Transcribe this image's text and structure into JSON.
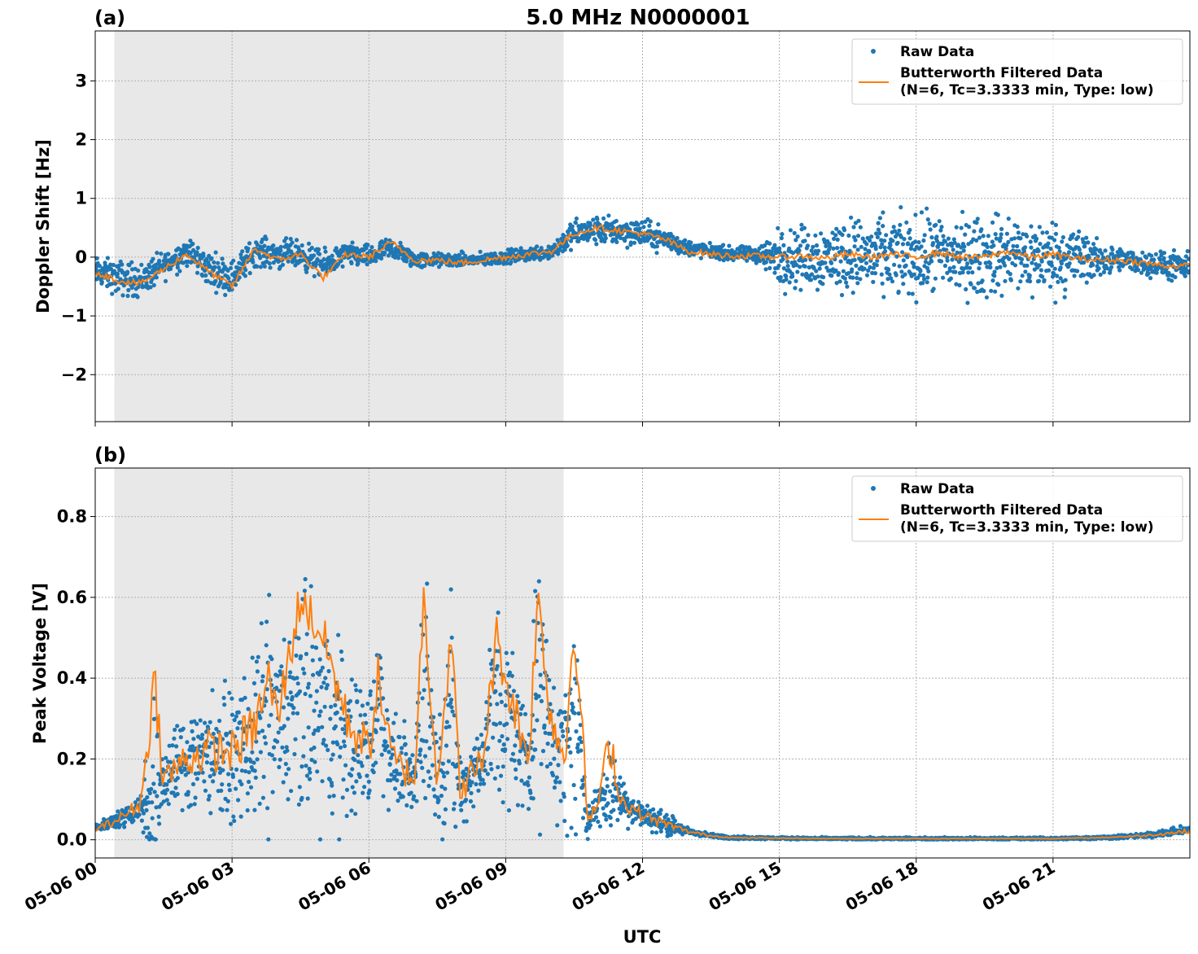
{
  "chart_data": {
    "type": "scatter",
    "title": "5.0 MHz N0000001",
    "xlabel": "UTC",
    "x_tick_labels": [
      "05-06 00",
      "05-06 03",
      "05-06 06",
      "05-06 09",
      "05-06 12",
      "05-06 15",
      "05-06 18",
      "05-06 21"
    ],
    "x_tick_hours": [
      0,
      3,
      6,
      9,
      12,
      15,
      18,
      21
    ],
    "xlim_hours": [
      0,
      24
    ],
    "shaded_region_hours": [
      0.42,
      10.27
    ],
    "grid": true,
    "legend_placement": "top-right",
    "colors": {
      "raw": "#1f77b4",
      "filtered": "#ff7f0e",
      "shade": "#e8e8e8"
    },
    "legend": {
      "raw": "Raw Data",
      "filtered_line1": "Butterworth Filtered Data",
      "filtered_line2": "(N=6, Tc=3.3333 min, Type: low)"
    },
    "panels": [
      {
        "label": "(a)",
        "ylabel": "Doppler Shift [Hz]",
        "ylim": [
          -2.8,
          3.85
        ],
        "y_ticks": [
          -2,
          -1,
          0,
          1,
          2,
          3
        ],
        "y_tick_labels": [
          "−2",
          "−1",
          "0",
          "1",
          "2",
          "3"
        ],
        "series": [
          {
            "name": "Raw Data",
            "kind": "scatter",
            "x_hours": [
              0,
              0.5,
              1,
              1.5,
              2,
              2.5,
              3,
              3.5,
              4,
              4.5,
              5,
              5.5,
              6,
              6.5,
              7,
              7.5,
              8,
              8.5,
              9,
              9.5,
              10,
              10.5,
              11,
              11.5,
              12,
              12.5,
              13,
              13.5,
              14,
              14.5,
              15,
              15.5,
              16,
              16.5,
              17,
              17.5,
              18,
              18.5,
              19,
              19.5,
              20,
              20.5,
              21,
              21.5,
              22,
              22.5,
              23,
              23.5,
              24
            ],
            "center": [
              -0.25,
              -0.35,
              -0.4,
              -0.15,
              0.1,
              -0.2,
              -0.35,
              0.1,
              0.05,
              0.05,
              -0.15,
              0.05,
              0.0,
              0.15,
              -0.05,
              -0.05,
              -0.05,
              -0.05,
              0.0,
              0.05,
              0.1,
              0.4,
              0.45,
              0.45,
              0.4,
              0.3,
              0.15,
              0.1,
              0.05,
              0.05,
              0.0,
              0.0,
              0.0,
              0.05,
              0.0,
              0.0,
              0.0,
              0.05,
              0.0,
              0.0,
              0.05,
              0.0,
              0.0,
              0.0,
              -0.05,
              -0.05,
              -0.1,
              -0.15,
              -0.2
            ],
            "spread": [
              0.25,
              0.3,
              0.3,
              0.25,
              0.25,
              0.3,
              0.3,
              0.25,
              0.25,
              0.25,
              0.25,
              0.2,
              0.2,
              0.2,
              0.15,
              0.12,
              0.12,
              0.12,
              0.12,
              0.12,
              0.15,
              0.25,
              0.25,
              0.25,
              0.25,
              0.2,
              0.15,
              0.12,
              0.12,
              0.15,
              0.5,
              0.55,
              0.6,
              0.65,
              0.65,
              0.7,
              0.7,
              0.7,
              0.7,
              0.7,
              0.7,
              0.7,
              0.65,
              0.6,
              0.3,
              0.2,
              0.2,
              0.25,
              0.25
            ]
          },
          {
            "name": "Butterworth Filtered Data",
            "kind": "line",
            "x_hours": [
              0,
              0.5,
              1,
              1.5,
              2,
              2.5,
              3,
              3.5,
              4,
              4.5,
              5,
              5.5,
              6,
              6.5,
              7,
              7.5,
              8,
              8.5,
              9,
              9.5,
              10,
              10.5,
              11,
              11.5,
              12,
              12.5,
              13,
              13.5,
              14,
              14.5,
              15,
              15.5,
              16,
              16.5,
              17,
              17.5,
              18,
              18.5,
              19,
              19.5,
              20,
              20.5,
              21,
              21.5,
              22,
              22.5,
              23,
              23.5,
              24
            ],
            "values": [
              -0.25,
              -0.4,
              -0.45,
              -0.2,
              0.05,
              -0.25,
              -0.5,
              0.15,
              -0.05,
              0.05,
              -0.35,
              0.05,
              0.0,
              0.25,
              -0.05,
              -0.05,
              -0.1,
              -0.05,
              0.0,
              0.05,
              0.1,
              0.4,
              0.5,
              0.45,
              0.4,
              0.3,
              0.1,
              0.05,
              0.02,
              0.02,
              0.0,
              0.02,
              -0.02,
              0.05,
              0.0,
              0.05,
              0.0,
              0.08,
              0.0,
              0.0,
              0.1,
              0.0,
              0.05,
              -0.02,
              -0.05,
              -0.05,
              -0.1,
              -0.15,
              -0.15
            ]
          }
        ]
      },
      {
        "label": "(b)",
        "ylabel": "Peak Voltage [V]",
        "ylim": [
          -0.045,
          0.92
        ],
        "y_ticks": [
          0.0,
          0.2,
          0.4,
          0.6,
          0.8
        ],
        "y_tick_labels": [
          "0.0",
          "0.2",
          "0.4",
          "0.6",
          "0.8"
        ],
        "series": [
          {
            "name": "Raw Data",
            "kind": "scatter",
            "x_hours": [
              0,
              0.5,
              1,
              1.3,
              1.5,
              2,
              2.5,
              3,
              3.5,
              3.8,
              4,
              4.5,
              5,
              5.5,
              6,
              6.2,
              6.5,
              7,
              7.2,
              7.5,
              7.8,
              8,
              8.5,
              8.8,
              9,
              9.5,
              9.7,
              10,
              10.3,
              10.5,
              10.8,
              11,
              11.3,
              11.5,
              12,
              12.5,
              13,
              13.5,
              14,
              15,
              16,
              17,
              18,
              19,
              20,
              21,
              22,
              23,
              24
            ],
            "center": [
              0.03,
              0.05,
              0.08,
              0.12,
              0.15,
              0.2,
              0.22,
              0.2,
              0.25,
              0.3,
              0.28,
              0.32,
              0.3,
              0.25,
              0.22,
              0.35,
              0.2,
              0.15,
              0.4,
              0.15,
              0.3,
              0.12,
              0.2,
              0.35,
              0.3,
              0.2,
              0.4,
              0.25,
              0.2,
              0.3,
              0.05,
              0.08,
              0.15,
              0.1,
              0.06,
              0.04,
              0.02,
              0.01,
              0.005,
              0.004,
              0.003,
              0.003,
              0.003,
              0.003,
              0.003,
              0.003,
              0.005,
              0.01,
              0.025
            ],
            "spread": [
              0.01,
              0.02,
              0.04,
              0.25,
              0.08,
              0.15,
              0.15,
              0.15,
              0.2,
              0.3,
              0.2,
              0.3,
              0.3,
              0.2,
              0.15,
              0.25,
              0.1,
              0.1,
              0.35,
              0.1,
              0.3,
              0.08,
              0.12,
              0.3,
              0.25,
              0.12,
              0.35,
              0.15,
              0.2,
              0.3,
              0.04,
              0.05,
              0.15,
              0.06,
              0.03,
              0.03,
              0.01,
              0.005,
              0.004,
              0.003,
              0.003,
              0.003,
              0.003,
              0.003,
              0.003,
              0.003,
              0.004,
              0.006,
              0.01
            ]
          },
          {
            "name": "Butterworth Filtered Data",
            "kind": "line",
            "x_hours": [
              0,
              0.5,
              1,
              1.3,
              1.5,
              2,
              2.5,
              3,
              3.5,
              3.8,
              4,
              4.5,
              5,
              5.5,
              6,
              6.2,
              6.5,
              7,
              7.2,
              7.5,
              7.8,
              8,
              8.5,
              8.8,
              9,
              9.5,
              9.7,
              10,
              10.3,
              10.5,
              10.8,
              11,
              11.3,
              11.5,
              12,
              12.5,
              13,
              13.5,
              14,
              15,
              16,
              17,
              18,
              19,
              20,
              21,
              22,
              23,
              24
            ],
            "values": [
              0.025,
              0.05,
              0.09,
              0.4,
              0.15,
              0.2,
              0.22,
              0.22,
              0.28,
              0.4,
              0.3,
              0.6,
              0.5,
              0.3,
              0.22,
              0.4,
              0.2,
              0.15,
              0.6,
              0.15,
              0.5,
              0.12,
              0.2,
              0.5,
              0.4,
              0.2,
              0.6,
              0.3,
              0.2,
              0.55,
              0.05,
              0.08,
              0.25,
              0.1,
              0.06,
              0.04,
              0.02,
              0.01,
              0.005,
              0.004,
              0.003,
              0.003,
              0.003,
              0.003,
              0.003,
              0.003,
              0.005,
              0.01,
              0.022
            ]
          }
        ]
      }
    ]
  }
}
